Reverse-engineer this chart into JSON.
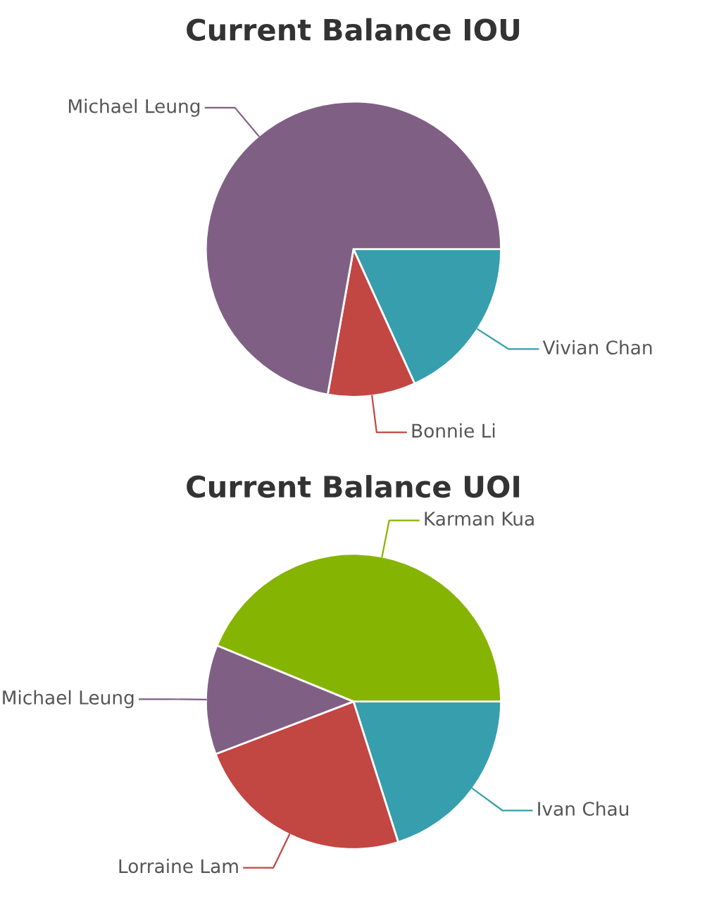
{
  "chart_data": [
    {
      "type": "pie",
      "title": "Current Balance IOU",
      "categories": [
        "Vivian Chan",
        "Bonnie Li",
        "Michael Leung"
      ],
      "values": [
        18.2,
        9.6,
        72.2
      ],
      "colors": [
        "#369ead",
        "#c24642",
        "#7f6084"
      ]
    },
    {
      "type": "pie",
      "title": "Current Balance UOI",
      "categories": [
        "Ivan Chau",
        "Lorraine Lam",
        "Michael Leung",
        "Karman Kua"
      ],
      "values": [
        20.1,
        24.1,
        12.0,
        43.8
      ],
      "colors": [
        "#369ead",
        "#c24642",
        "#7f6084",
        "#86b402"
      ]
    }
  ]
}
